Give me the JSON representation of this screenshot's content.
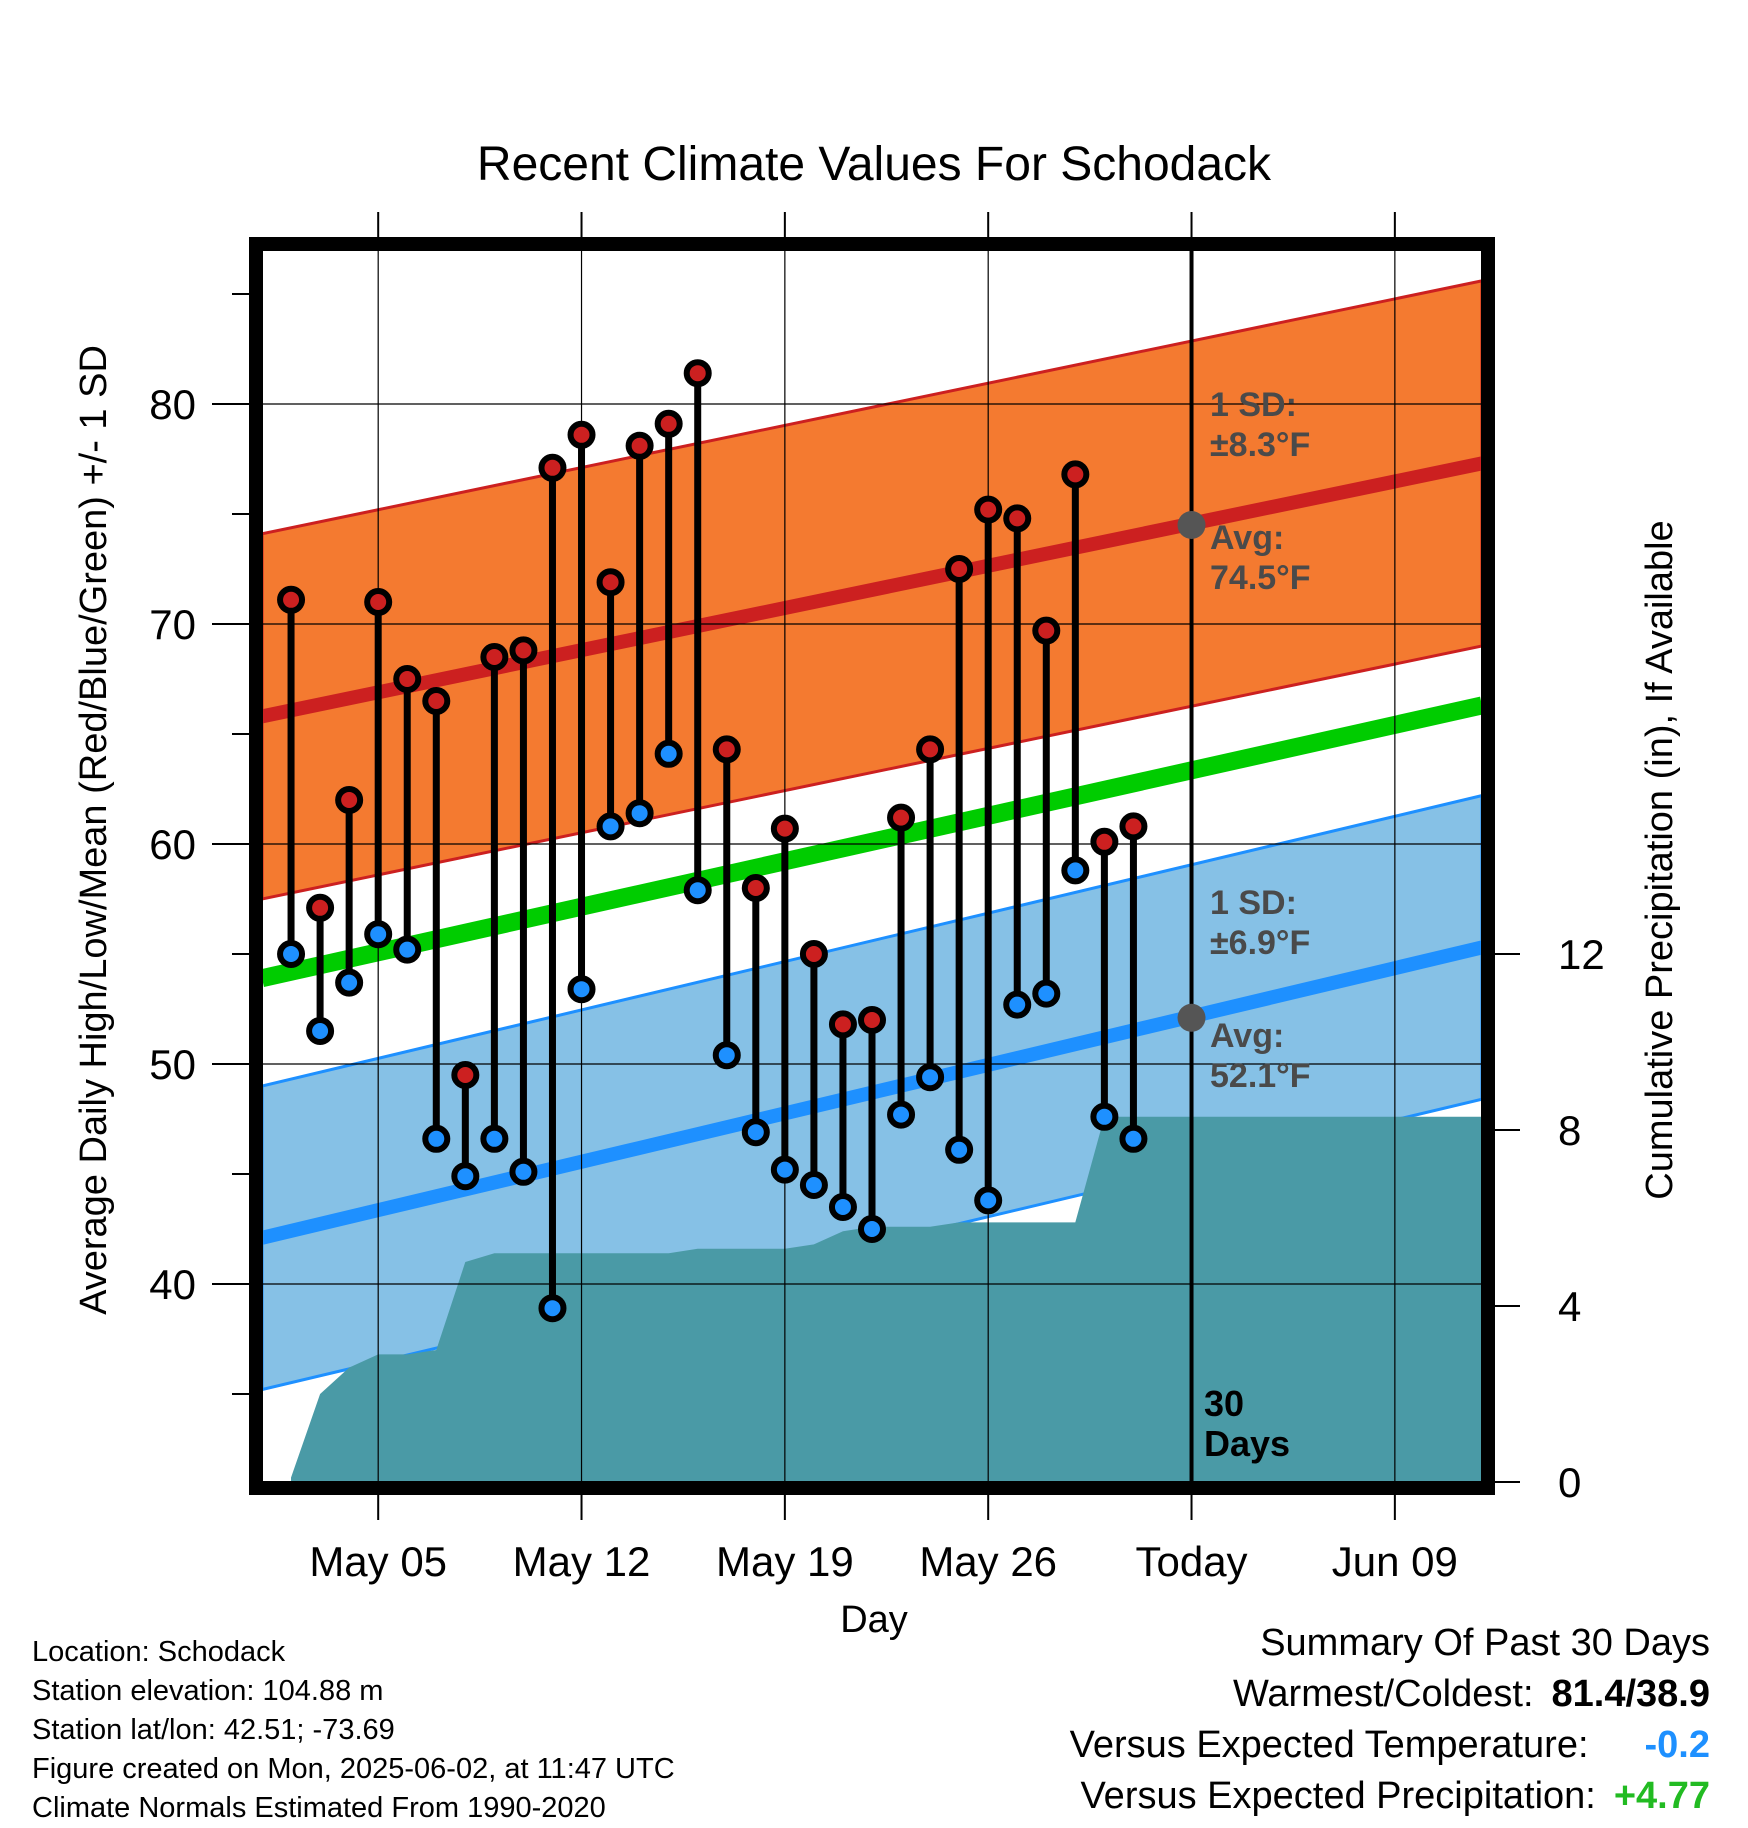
{
  "chart_data": {
    "type": "line",
    "title": "Recent Climate Values For Schodack",
    "xlabel": "Day",
    "ylabel": "Average Daily High/Low/Mean (Red/Blue/Green) +/- 1 SD",
    "y2label": "Cumulative Precipitation (in), If Available",
    "x_tick_labels": [
      "May 05",
      "May 12",
      "May 19",
      "May 26",
      "Today",
      "Jun 09"
    ],
    "x_range": [
      "2025-05-01",
      "2025-06-12"
    ],
    "ylim": [
      31,
      87
    ],
    "yticks": [
      40,
      50,
      60,
      70,
      80
    ],
    "y2lim": [
      0,
      28
    ],
    "y2ticks": [
      0,
      4,
      8,
      12
    ],
    "today": "2025-06-02",
    "days": [
      "2025-05-02",
      "2025-05-03",
      "2025-05-04",
      "2025-05-05",
      "2025-05-06",
      "2025-05-07",
      "2025-05-08",
      "2025-05-09",
      "2025-05-10",
      "2025-05-11",
      "2025-05-12",
      "2025-05-13",
      "2025-05-14",
      "2025-05-15",
      "2025-05-16",
      "2025-05-17",
      "2025-05-18",
      "2025-05-19",
      "2025-05-20",
      "2025-05-21",
      "2025-05-22",
      "2025-05-23",
      "2025-05-24",
      "2025-05-25",
      "2025-05-26",
      "2025-05-27",
      "2025-05-28",
      "2025-05-29",
      "2025-05-30",
      "2025-05-31",
      "2025-06-01"
    ],
    "series": [
      {
        "name": "Daily High",
        "color": "#cc2020",
        "values": [
          71.1,
          57.1,
          62.0,
          71.0,
          67.5,
          66.5,
          49.5,
          68.5,
          68.8,
          77.1,
          78.6,
          71.9,
          78.1,
          79.1,
          81.4,
          64.3,
          58.0,
          60.7,
          55.0,
          51.8,
          52.0,
          61.2,
          64.3,
          72.5,
          75.2,
          74.8,
          69.7,
          76.8,
          60.1,
          60.8,
          null
        ]
      },
      {
        "name": "Daily Low",
        "color": "#1e90ff",
        "values": [
          55.0,
          51.5,
          53.7,
          55.9,
          55.2,
          46.6,
          44.9,
          46.6,
          45.1,
          38.9,
          53.4,
          60.8,
          61.4,
          64.1,
          57.9,
          50.4,
          46.9,
          45.2,
          44.5,
          43.5,
          42.5,
          47.7,
          49.4,
          46.1,
          43.8,
          52.7,
          53.2,
          58.8,
          47.6,
          46.6,
          null
        ]
      }
    ],
    "normals": {
      "high_avg": {
        "start": 65.8,
        "end": 77.3
      },
      "high_sd": 8.3,
      "low_avg": {
        "start": 42.1,
        "end": 55.3
      },
      "low_sd": 6.9,
      "mean_avg": {
        "start": 53.9,
        "end": 66.3
      }
    },
    "precipitation_cumulative": [
      0.1,
      2.0,
      2.6,
      2.9,
      2.9,
      3.0,
      5.0,
      5.2,
      5.2,
      5.2,
      5.2,
      5.2,
      5.2,
      5.2,
      5.3,
      5.3,
      5.3,
      5.3,
      5.4,
      5.7,
      5.8,
      5.8,
      5.8,
      5.9,
      5.9,
      5.9,
      5.9,
      5.9,
      8.3,
      8.3,
      8.3
    ],
    "annotations": {
      "high_sd_label": [
        "1 SD:",
        "±8.3°F"
      ],
      "high_avg_label": [
        "Avg:",
        "74.5°F"
      ],
      "low_sd_label": [
        "1 SD:",
        "±6.9°F"
      ],
      "low_avg_label": [
        "Avg:",
        "52.1°F"
      ],
      "today_label": [
        "30",
        "Days"
      ],
      "today_high_avg": 74.5,
      "today_low_avg": 52.1
    },
    "colors": {
      "high_band": "#f47a30",
      "low_band": "#86c1e6",
      "mean_line": "#00cc00",
      "precip": "#4a9aa6"
    }
  },
  "footer": {
    "location": "Location: Schodack",
    "elevation": "Station elevation: 104.88 m",
    "latlon": "Station lat/lon: 42.51; -73.69",
    "created": "Figure created on Mon, 2025-06-02, at 11:47 UTC",
    "normals": "Climate Normals Estimated From 1990-2020"
  },
  "summary": {
    "heading": "Summary Of Past 30 Days",
    "warm_cold_label": "Warmest/Coldest:",
    "warm_cold_value": "81.4/38.9",
    "temp_label": "Versus Expected Temperature:",
    "temp_value": "-0.2",
    "temp_color": "#1e90ff",
    "precip_label": "Versus Expected Precipitation:",
    "precip_value": "+4.77",
    "precip_color": "#22bb22"
  }
}
